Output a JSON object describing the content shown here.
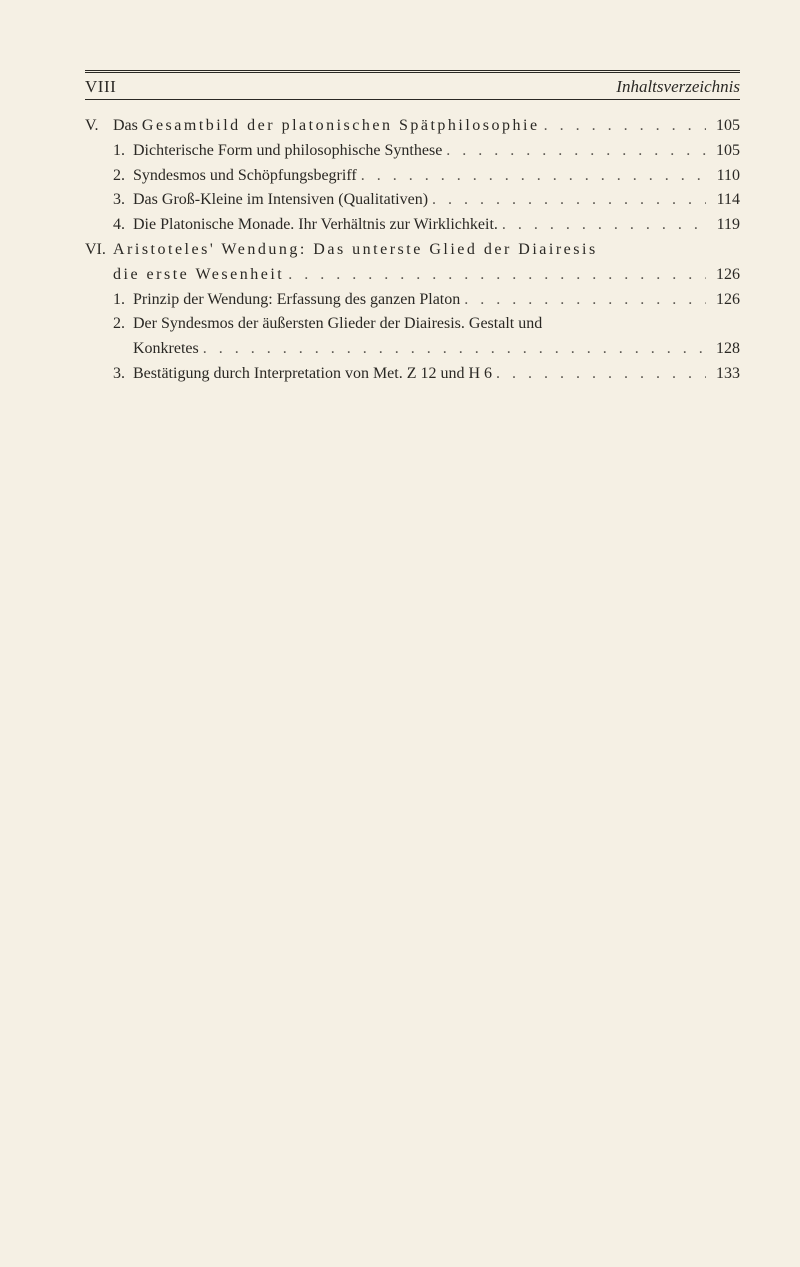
{
  "header": {
    "pageRoman": "VIII",
    "title": "Inhaltsverzeichnis"
  },
  "sections": [
    {
      "marker": "V.",
      "title_pre": "Das ",
      "title_spaced": "Gesamtbild der platonischen Spätphilosophie",
      "page": "105",
      "items": [
        {
          "marker": "1.",
          "label": "Dichterische Form und philosophische Synthese",
          "page": "105"
        },
        {
          "marker": "2.",
          "label": "Syndesmos und Schöpfungsbegriff",
          "page": "110"
        },
        {
          "marker": "3.",
          "label": "Das Groß-Kleine im Intensiven (Qualitativen)",
          "page": "114"
        },
        {
          "marker": "4.",
          "label": "Die Platonische Monade. Ihr Verhältnis zur Wirklichkeit.",
          "page": "119"
        }
      ]
    },
    {
      "marker": "VI.",
      "title_line1_spaced": "Aristoteles' Wendung: Das unterste Glied der Diairesis",
      "title_line2_spaced": "die erste Wesenheit",
      "page": "126",
      "items": [
        {
          "marker": "1.",
          "label": "Prinzip der Wendung: Erfassung des ganzen Platon",
          "page": "126"
        },
        {
          "marker": "2.",
          "label_line1": "Der Syndesmos der äußersten Glieder der Diairesis. Gestalt und",
          "label_line2": "Konkretes",
          "page": "128"
        },
        {
          "marker": "3.",
          "label": "Bestätigung durch Interpretation von Met. Z 12 und H 6",
          "page": "133"
        }
      ]
    }
  ]
}
